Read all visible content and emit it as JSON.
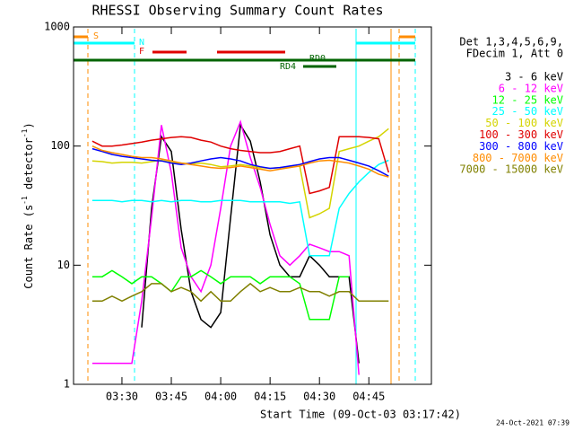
{
  "chart_data": {
    "type": "line",
    "title": "RHESSI Observing Summary Count Rates",
    "x_label": "Start Time (09-Oct-03 03:17:42)",
    "y_label_parts": [
      "Count Rate (s",
      "-1",
      " detector",
      "-1",
      ")"
    ],
    "timestamp": "24-Oct-2021 07:39",
    "legend_title": [
      "Det 1,3,4,5,6,9,",
      "FDecim 1, Att 0"
    ],
    "annotations": [
      "S",
      "N",
      "F",
      "RD0",
      "RD4"
    ],
    "ylog": true,
    "xlim": [
      15.3,
      124
    ],
    "ylim": [
      1,
      1000
    ],
    "xticks": [
      {
        "value": 30,
        "label": "03:30"
      },
      {
        "value": 45,
        "label": "03:45"
      },
      {
        "value": 60,
        "label": "04:00"
      },
      {
        "value": 75,
        "label": "04:15"
      },
      {
        "value": 90,
        "label": "04:30"
      },
      {
        "value": 105,
        "label": "04:45"
      }
    ],
    "yticks": [
      1,
      10,
      100,
      1000
    ],
    "x": [
      21,
      24,
      27,
      30,
      33,
      36,
      39,
      42,
      45,
      48,
      51,
      54,
      57,
      60,
      63,
      66,
      69,
      72,
      75,
      78,
      81,
      84,
      87,
      90,
      93,
      96,
      99,
      102,
      105,
      108,
      111,
      114,
      117
    ],
    "series": [
      {
        "name": "3 - 6 keV",
        "color": "#000000",
        "values": [
          null,
          null,
          null,
          null,
          null,
          3,
          30,
          120,
          90,
          20,
          6,
          3.5,
          3,
          4,
          25,
          150,
          110,
          50,
          18,
          10,
          8,
          8,
          12,
          10,
          8,
          8,
          8,
          1.5,
          null,
          null,
          null,
          null,
          null
        ]
      },
      {
        "name": "6 - 12 keV",
        "color": "#ff00ff",
        "values": [
          1.5,
          1.5,
          1.5,
          1.5,
          1.5,
          5,
          25,
          150,
          60,
          14,
          8,
          6,
          10,
          30,
          100,
          160,
          80,
          45,
          22,
          12,
          10,
          12,
          15,
          14,
          13,
          13,
          12,
          1.2,
          null,
          null,
          null,
          null,
          null
        ]
      },
      {
        "name": "12 - 25 keV",
        "color": "#00ff00",
        "values": [
          8,
          8,
          9,
          8,
          7,
          8,
          8,
          7,
          6,
          8,
          8,
          9,
          8,
          7,
          8,
          8,
          8,
          7,
          8,
          8,
          8,
          7,
          3.5,
          3.5,
          3.5,
          8,
          8,
          null,
          null,
          null,
          null,
          null,
          null
        ]
      },
      {
        "name": "25 - 50 keV",
        "color": "#00ffff",
        "values": [
          35,
          35,
          35,
          34,
          35,
          35,
          34,
          35,
          34,
          35,
          35,
          34,
          34,
          35,
          35,
          35,
          34,
          34,
          34,
          34,
          33,
          34,
          12,
          12,
          12,
          30,
          40,
          50,
          60,
          70,
          76,
          null,
          null
        ]
      },
      {
        "name": "50 - 100 keV",
        "color": "#d4d400",
        "values": [
          75,
          74,
          72,
          73,
          73,
          72,
          74,
          76,
          73,
          72,
          71,
          72,
          70,
          67,
          68,
          70,
          68,
          66,
          65,
          66,
          67,
          68,
          25,
          27,
          30,
          90,
          95,
          100,
          110,
          120,
          140,
          null,
          null
        ]
      },
      {
        "name": "100 - 300 keV",
        "color": "#e00000",
        "values": [
          110,
          100,
          100,
          102,
          105,
          108,
          112,
          115,
          118,
          120,
          118,
          112,
          108,
          100,
          95,
          92,
          90,
          88,
          88,
          90,
          95,
          100,
          40,
          42,
          45,
          120,
          120,
          120,
          118,
          115,
          60,
          null,
          null
        ]
      },
      {
        "name": "300 - 800 keV",
        "color": "#0000ff",
        "values": [
          95,
          90,
          85,
          82,
          80,
          78,
          76,
          75,
          72,
          70,
          72,
          75,
          78,
          80,
          78,
          75,
          70,
          67,
          65,
          66,
          68,
          70,
          74,
          78,
          80,
          80,
          76,
          72,
          68,
          62,
          56,
          null,
          null
        ]
      },
      {
        "name": "800 - 7000 keV",
        "color": "#ff8c00",
        "values": [
          100,
          92,
          88,
          85,
          82,
          80,
          80,
          78,
          75,
          72,
          70,
          68,
          66,
          65,
          66,
          68,
          66,
          64,
          62,
          64,
          66,
          68,
          72,
          75,
          76,
          74,
          72,
          68,
          64,
          58,
          55,
          null,
          null
        ]
      },
      {
        "name": "7000 - 15000 keV",
        "color": "#808000",
        "values": [
          5,
          5,
          5.5,
          5,
          5.5,
          6,
          7,
          7,
          6,
          6.5,
          6,
          5,
          6,
          5,
          5,
          6,
          7,
          6,
          6.5,
          6,
          6,
          6.5,
          6,
          6,
          5.5,
          6,
          6,
          5,
          5,
          5,
          5,
          null,
          null
        ]
      }
    ]
  }
}
